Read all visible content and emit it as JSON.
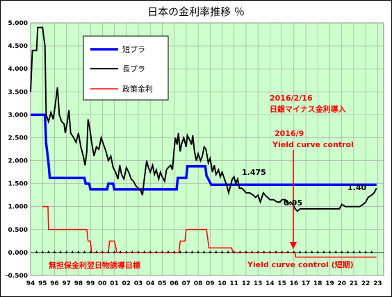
{
  "chart_data": {
    "type": "line",
    "title": "日本の金利率推移 ％",
    "xlabel": "",
    "ylabel": "",
    "ylim": [
      -0.5,
      5.0
    ],
    "xlim": [
      1994,
      2023.5
    ],
    "grid": true,
    "background_color": "#ccffcc",
    "legend_position": "top-left",
    "y_ticks": [
      "5.000",
      "4.500",
      "4.000",
      "3.500",
      "3.000",
      "2.500",
      "2.000",
      "1.500",
      "1.000",
      "0.500",
      "0.000",
      "-0.500"
    ],
    "y_tick_values": [
      5.0,
      4.5,
      4.0,
      3.5,
      3.0,
      2.5,
      2.0,
      1.5,
      1.0,
      0.5,
      0.0,
      -0.5
    ],
    "x_ticks": [
      "94",
      "95",
      "96",
      "97",
      "98",
      "99",
      "00",
      "01",
      "02",
      "03",
      "04",
      "05",
      "06",
      "07",
      "08",
      "09",
      "10",
      "11",
      "12",
      "13",
      "14",
      "15",
      "16",
      "17",
      "18",
      "19",
      "20",
      "21",
      "22",
      "23"
    ],
    "x_tick_values": [
      1994,
      1995,
      1996,
      1997,
      1998,
      1999,
      2000,
      2001,
      2002,
      2003,
      2004,
      2005,
      2006,
      2007,
      2008,
      2009,
      2010,
      2011,
      2012,
      2013,
      2014,
      2015,
      2016,
      2017,
      2018,
      2019,
      2020,
      2021,
      2022,
      2023
    ],
    "series": [
      {
        "name": "短プラ",
        "color": "#0000ff",
        "points": [
          [
            1994.0,
            3.0
          ],
          [
            1995.2,
            3.0
          ],
          [
            1995.3,
            2.38
          ],
          [
            1995.5,
            1.95
          ],
          [
            1995.6,
            1.625
          ],
          [
            1998.5,
            1.625
          ],
          [
            1998.6,
            1.5
          ],
          [
            1998.9,
            1.5
          ],
          [
            1999.0,
            1.375
          ],
          [
            2000.4,
            1.375
          ],
          [
            2000.5,
            1.5
          ],
          [
            2000.9,
            1.5
          ],
          [
            2001.0,
            1.375
          ],
          [
            2006.2,
            1.375
          ],
          [
            2006.3,
            1.625
          ],
          [
            2007.0,
            1.625
          ],
          [
            2007.1,
            1.875
          ],
          [
            2008.6,
            1.875
          ],
          [
            2008.7,
            1.675
          ],
          [
            2009.1,
            1.475
          ],
          [
            2022.9,
            1.475
          ]
        ]
      },
      {
        "name": "長プラ",
        "color": "#000000",
        "points": [
          [
            1994.0,
            3.5
          ],
          [
            1994.15,
            4.4
          ],
          [
            1994.5,
            4.4
          ],
          [
            1994.6,
            4.9
          ],
          [
            1995.0,
            4.9
          ],
          [
            1995.2,
            4.5
          ],
          [
            1995.3,
            3.0
          ],
          [
            1995.5,
            2.85
          ],
          [
            1995.7,
            3.05
          ],
          [
            1995.9,
            2.9
          ],
          [
            1996.1,
            3.3
          ],
          [
            1996.25,
            3.6
          ],
          [
            1996.4,
            3.0
          ],
          [
            1996.6,
            2.85
          ],
          [
            1996.8,
            2.8
          ],
          [
            1996.9,
            2.6
          ],
          [
            1997.1,
            2.9
          ],
          [
            1997.2,
            3.1
          ],
          [
            1997.35,
            2.6
          ],
          [
            1997.6,
            2.5
          ],
          [
            1997.8,
            2.4
          ],
          [
            1998.0,
            2.6
          ],
          [
            1998.2,
            2.3
          ],
          [
            1998.4,
            2.1
          ],
          [
            1998.55,
            1.9
          ],
          [
            1998.7,
            2.2
          ],
          [
            1998.8,
            2.9
          ],
          [
            1998.95,
            2.7
          ],
          [
            1999.1,
            2.4
          ],
          [
            1999.3,
            2.1
          ],
          [
            1999.5,
            2.3
          ],
          [
            1999.7,
            2.25
          ],
          [
            1999.9,
            2.5
          ],
          [
            2000.1,
            2.35
          ],
          [
            2000.3,
            2.2
          ],
          [
            2000.5,
            2.0
          ],
          [
            2000.7,
            2.1
          ],
          [
            2000.9,
            1.85
          ],
          [
            2001.1,
            1.75
          ],
          [
            2001.3,
            1.6
          ],
          [
            2001.45,
            1.9
          ],
          [
            2001.6,
            1.7
          ],
          [
            2001.8,
            1.6
          ],
          [
            2002.0,
            1.85
          ],
          [
            2002.2,
            1.75
          ],
          [
            2002.4,
            1.6
          ],
          [
            2002.6,
            1.55
          ],
          [
            2002.8,
            1.45
          ],
          [
            2003.0,
            1.4
          ],
          [
            2003.2,
            1.35
          ],
          [
            2003.35,
            1.25
          ],
          [
            2003.5,
            1.6
          ],
          [
            2003.7,
            2.0
          ],
          [
            2003.85,
            1.85
          ],
          [
            2004.0,
            1.75
          ],
          [
            2004.2,
            1.9
          ],
          [
            2004.35,
            1.7
          ],
          [
            2004.5,
            1.8
          ],
          [
            2004.7,
            1.6
          ],
          [
            2004.85,
            1.75
          ],
          [
            2005.0,
            1.65
          ],
          [
            2005.2,
            1.55
          ],
          [
            2005.35,
            1.8
          ],
          [
            2005.5,
            1.85
          ],
          [
            2005.7,
            1.9
          ],
          [
            2005.85,
            1.8
          ],
          [
            2006.0,
            2.25
          ],
          [
            2006.1,
            2.5
          ],
          [
            2006.25,
            2.35
          ],
          [
            2006.35,
            2.6
          ],
          [
            2006.5,
            2.2
          ],
          [
            2006.6,
            2.35
          ],
          [
            2006.8,
            2.5
          ],
          [
            2007.0,
            2.3
          ],
          [
            2007.1,
            2.55
          ],
          [
            2007.3,
            2.45
          ],
          [
            2007.45,
            2.35
          ],
          [
            2007.55,
            2.55
          ],
          [
            2007.7,
            2.2
          ],
          [
            2007.85,
            2.0
          ],
          [
            2008.0,
            2.15
          ],
          [
            2008.2,
            2.0
          ],
          [
            2008.35,
            2.1
          ],
          [
            2008.5,
            2.3
          ],
          [
            2008.65,
            2.25
          ],
          [
            2008.85,
            1.95
          ],
          [
            2009.0,
            2.05
          ],
          [
            2009.2,
            1.75
          ],
          [
            2009.35,
            1.9
          ],
          [
            2009.5,
            1.7
          ],
          [
            2009.7,
            1.8
          ],
          [
            2009.85,
            1.65
          ],
          [
            2010.0,
            1.75
          ],
          [
            2010.2,
            1.6
          ],
          [
            2010.4,
            1.45
          ],
          [
            2010.55,
            1.3
          ],
          [
            2010.7,
            1.45
          ],
          [
            2010.85,
            1.6
          ],
          [
            2011.0,
            1.65
          ],
          [
            2011.15,
            1.5
          ],
          [
            2011.3,
            1.6
          ],
          [
            2011.45,
            1.4
          ],
          [
            2011.65,
            1.4
          ],
          [
            2011.85,
            1.35
          ],
          [
            2012.0,
            1.3
          ],
          [
            2012.3,
            1.3
          ],
          [
            2012.6,
            1.25
          ],
          [
            2012.8,
            1.2
          ],
          [
            2013.0,
            1.25
          ],
          [
            2013.2,
            1.1
          ],
          [
            2013.45,
            1.3
          ],
          [
            2013.6,
            1.25
          ],
          [
            2013.8,
            1.2
          ],
          [
            2014.0,
            1.15
          ],
          [
            2014.3,
            1.15
          ],
          [
            2014.6,
            1.1
          ],
          [
            2014.85,
            1.1
          ],
          [
            2015.0,
            1.15
          ],
          [
            2015.3,
            1.15
          ],
          [
            2015.5,
            1.05
          ],
          [
            2015.7,
            1.1
          ],
          [
            2015.9,
            1.05
          ],
          [
            2016.1,
            0.95
          ],
          [
            2016.3,
            0.9
          ],
          [
            2016.5,
            0.95
          ],
          [
            2017.0,
            0.95
          ],
          [
            2017.3,
            0.95
          ],
          [
            2017.5,
            0.95
          ],
          [
            2018.0,
            0.95
          ],
          [
            2018.5,
            0.95
          ],
          [
            2019.0,
            0.95
          ],
          [
            2019.5,
            0.95
          ],
          [
            2019.8,
            0.95
          ],
          [
            2020.0,
            1.05
          ],
          [
            2020.3,
            1.0
          ],
          [
            2020.6,
            1.0
          ],
          [
            2021.0,
            1.0
          ],
          [
            2021.5,
            1.0
          ],
          [
            2021.8,
            1.05
          ],
          [
            2022.0,
            1.1
          ],
          [
            2022.2,
            1.2
          ],
          [
            2022.5,
            1.25
          ],
          [
            2022.7,
            1.3
          ],
          [
            2022.9,
            1.4
          ]
        ]
      },
      {
        "name": "政策金利",
        "color": "#ff0000",
        "points": [
          [
            1995.0,
            1.0
          ],
          [
            1995.45,
            1.0
          ],
          [
            1995.5,
            0.5
          ],
          [
            1998.7,
            0.5
          ],
          [
            1998.8,
            0.25
          ],
          [
            1999.0,
            0.25
          ],
          [
            1999.1,
            0.0
          ],
          [
            2000.5,
            0.0
          ],
          [
            2000.6,
            0.25
          ],
          [
            2001.0,
            0.25
          ],
          [
            2001.1,
            0.15
          ],
          [
            2001.2,
            0.0
          ],
          [
            2006.4,
            0.0
          ],
          [
            2006.5,
            0.25
          ],
          [
            2006.9,
            0.25
          ],
          [
            2007.0,
            0.5
          ],
          [
            2008.7,
            0.5
          ],
          [
            2008.8,
            0.3
          ],
          [
            2008.9,
            0.1
          ],
          [
            2010.8,
            0.1
          ],
          [
            2010.9,
            0.0
          ],
          [
            2016.1,
            0.0
          ],
          [
            2016.15,
            -0.1
          ],
          [
            2022.9,
            -0.1
          ]
        ]
      }
    ],
    "labels": {
      "short_prime_end": "1.475",
      "long_prime_min": "0.95",
      "long_prime_end": "1.40"
    },
    "annotations": {
      "negative_rate_date": "2016/2/16",
      "negative_rate_text": "日銀マイナス金利導入",
      "ycc_date": "2016/9",
      "ycc_text": "Yield curve control",
      "policy_zero_text": "無担保金利翌日物誘導目標",
      "policy_negative_text": "Yield curve control (短期)"
    }
  }
}
